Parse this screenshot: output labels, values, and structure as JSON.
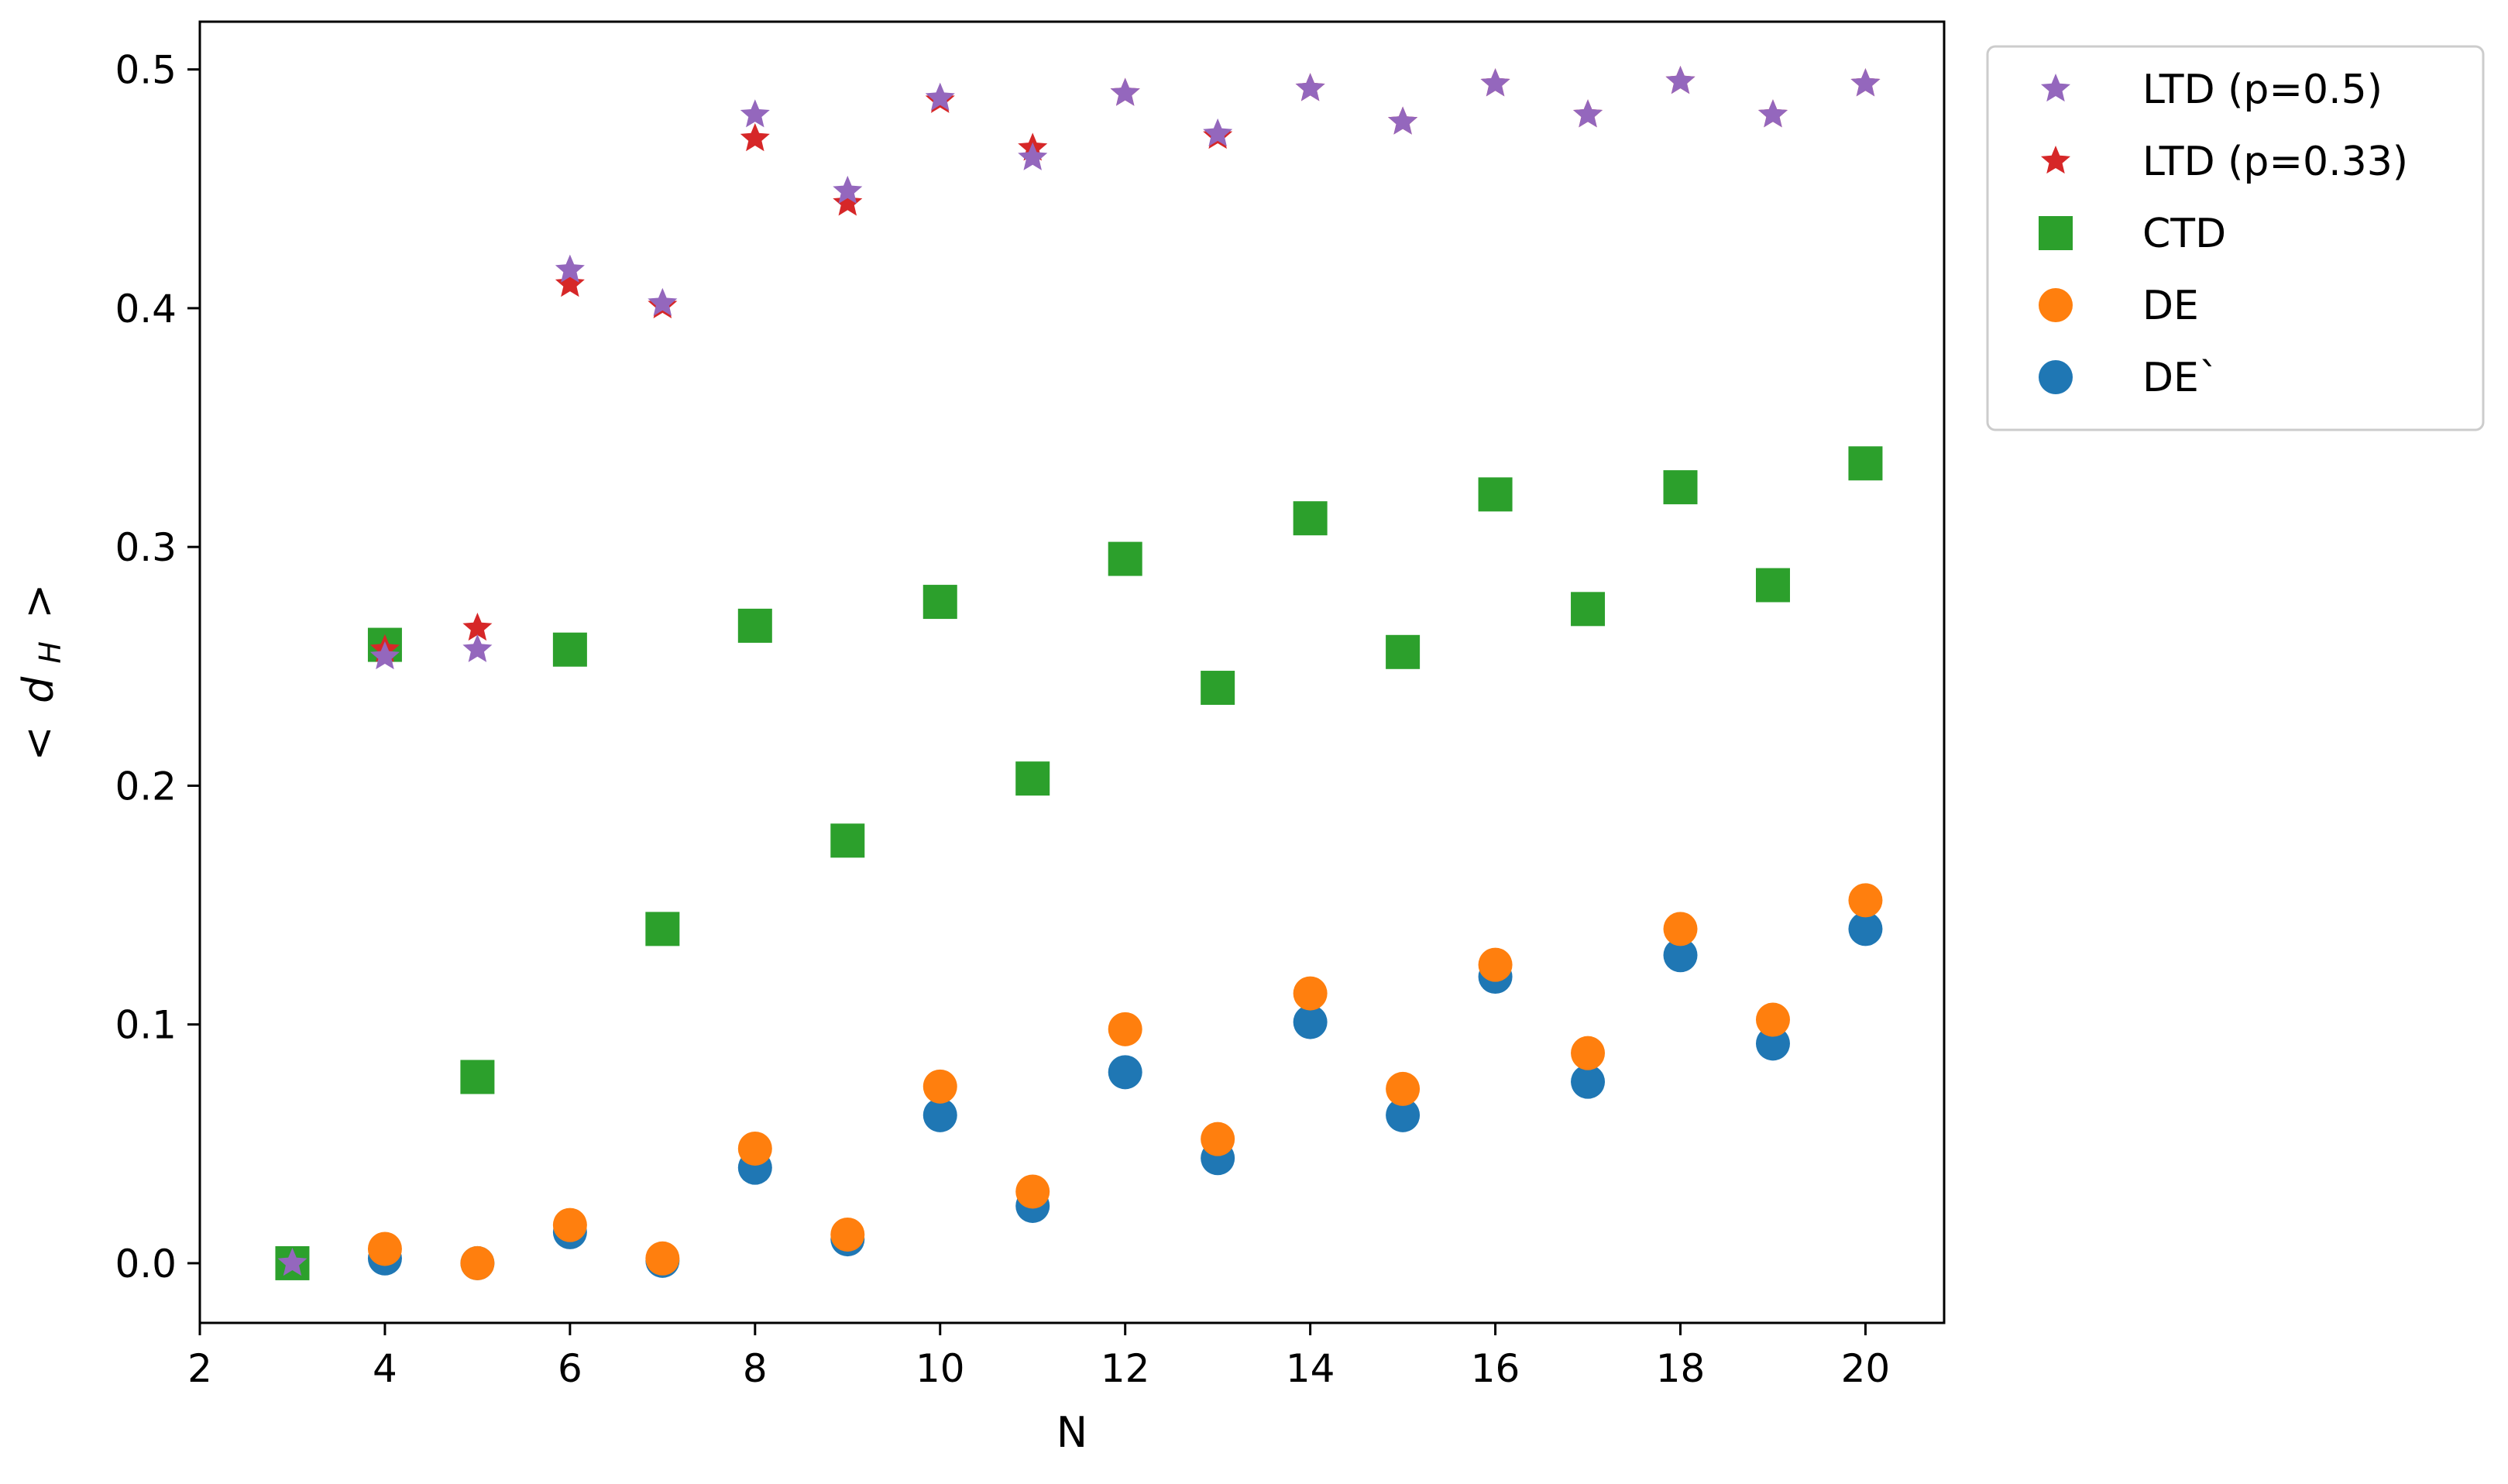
{
  "chart_data": {
    "type": "scatter",
    "xlabel": "N",
    "ylabel": "< d_H >",
    "ylabel_parts": {
      "left": "<",
      "var": "d",
      "sub": "H",
      "right": ">"
    },
    "xlim": [
      2,
      20.85
    ],
    "ylim": [
      -0.025,
      0.52
    ],
    "xticks": [
      2,
      4,
      6,
      8,
      10,
      12,
      14,
      16,
      18,
      20
    ],
    "xtick_labels": [
      "2",
      "4",
      "6",
      "8",
      "10",
      "12",
      "14",
      "16",
      "18",
      "20"
    ],
    "yticks": [
      0.0,
      0.1,
      0.2,
      0.3,
      0.4,
      0.5
    ],
    "ytick_labels": [
      "0.0",
      "0.1",
      "0.2",
      "0.3",
      "0.4",
      "0.5"
    ],
    "grid": false,
    "legend_placement": "outside-top-right",
    "series": [
      {
        "name": "DE`",
        "marker": "circle",
        "color": "#1f77b4",
        "x": [
          4,
          5,
          6,
          7,
          8,
          9,
          10,
          11,
          12,
          13,
          14,
          15,
          16,
          17,
          18,
          19,
          20
        ],
        "y": [
          0.002,
          0.0,
          0.013,
          0.001,
          0.04,
          0.01,
          0.062,
          0.024,
          0.08,
          0.044,
          0.101,
          0.062,
          0.12,
          0.076,
          0.129,
          0.092,
          0.14
        ]
      },
      {
        "name": "DE",
        "marker": "circle",
        "color": "#ff7f0e",
        "x": [
          4,
          5,
          6,
          7,
          8,
          9,
          10,
          11,
          12,
          13,
          14,
          15,
          16,
          17,
          18,
          19,
          20
        ],
        "y": [
          0.006,
          0.0,
          0.016,
          0.002,
          0.048,
          0.012,
          0.074,
          0.03,
          0.098,
          0.052,
          0.113,
          0.073,
          0.125,
          0.088,
          0.14,
          0.102,
          0.152
        ]
      },
      {
        "name": "CTD",
        "marker": "square",
        "color": "#2ca02c",
        "x": [
          3,
          4,
          5,
          6,
          7,
          8,
          9,
          10,
          11,
          12,
          13,
          14,
          15,
          16,
          17,
          18,
          19,
          20
        ],
        "y": [
          0.0,
          0.259,
          0.078,
          0.257,
          0.14,
          0.267,
          0.177,
          0.277,
          0.203,
          0.295,
          0.241,
          0.312,
          0.256,
          0.322,
          0.274,
          0.325,
          0.284,
          0.335
        ]
      },
      {
        "name": "LTD (p=0.33)",
        "marker": "star",
        "color": "#d62728",
        "x": [
          4,
          5,
          6,
          7,
          8,
          9,
          10,
          11,
          12,
          13,
          14,
          15,
          16,
          17,
          18,
          19,
          20
        ],
        "y": [
          0.257,
          0.266,
          0.41,
          0.401,
          0.471,
          0.444,
          0.487,
          0.467,
          0.49,
          0.472,
          0.492,
          0.478,
          0.494,
          0.481,
          0.495,
          0.481,
          0.494
        ]
      },
      {
        "name": "LTD (p=0.5)",
        "marker": "star",
        "color": "#9467bd",
        "x": [
          3,
          4,
          5,
          6,
          7,
          8,
          9,
          10,
          11,
          12,
          13,
          14,
          15,
          16,
          17,
          18,
          19,
          20
        ],
        "y": [
          0.0,
          0.254,
          0.257,
          0.416,
          0.402,
          0.481,
          0.449,
          0.488,
          0.463,
          0.49,
          0.473,
          0.492,
          0.478,
          0.494,
          0.481,
          0.495,
          0.481,
          0.494
        ]
      }
    ],
    "legend_order": [
      "LTD (p=0.5)",
      "LTD (p=0.33)",
      "CTD",
      "DE",
      "DE`"
    ]
  }
}
